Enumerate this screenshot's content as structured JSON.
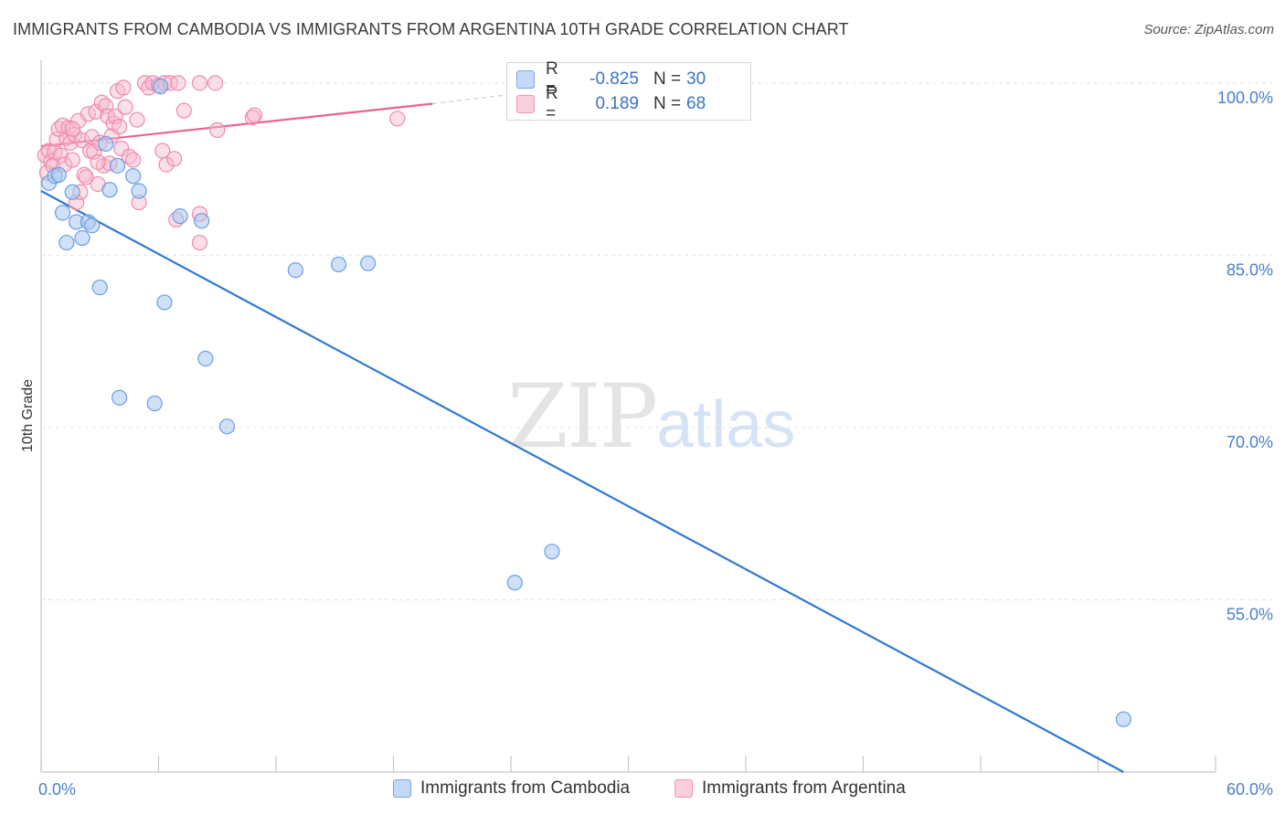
{
  "header": {
    "title": "IMMIGRANTS FROM CAMBODIA VS IMMIGRANTS FROM ARGENTINA 10TH GRADE CORRELATION CHART",
    "source": "Source: ZipAtlas.com"
  },
  "watermark": {
    "zip": "ZIP",
    "atlas": "atlas"
  },
  "legend": {
    "rows": [
      {
        "r_label": "R =",
        "r_value": "-0.825",
        "n_label": "N =",
        "n_value": "30",
        "color": "#a9c8f0"
      },
      {
        "r_label": "R =",
        "r_value": "0.189",
        "n_label": "N =",
        "n_value": "68",
        "color": "#f6b7cb"
      }
    ]
  },
  "bottom_legend": {
    "cambodia": "Immigrants from Cambodia",
    "argentina": "Immigrants from Argentina"
  },
  "colors": {
    "cambodia_fill": "#a9c8f0",
    "cambodia_stroke": "#6b9ee0",
    "cambodia_line": "#2f78d4",
    "argentina_fill": "#f6b7cb",
    "argentina_stroke": "#ee8aab",
    "argentina_line": "#e8638f",
    "tick_text": "#4a7fc8"
  },
  "chart_data": {
    "type": "scatter",
    "title": "IMMIGRANTS FROM CAMBODIA VS IMMIGRANTS FROM ARGENTINA 10TH GRADE CORRELATION CHART",
    "xlabel": "",
    "ylabel": "10th Grade",
    "xlim": [
      0,
      60
    ],
    "ylim": [
      40,
      101.5
    ],
    "x_tick_labels": [
      {
        "value": 0,
        "label": "0.0%"
      },
      {
        "value": 60,
        "label": "60.0%"
      }
    ],
    "y_tick_labels": [
      {
        "value": 100,
        "label": "100.0%"
      },
      {
        "value": 85,
        "label": "85.0%"
      },
      {
        "value": 70,
        "label": "70.0%"
      },
      {
        "value": 55,
        "label": "55.0%"
      }
    ],
    "y_grid": [
      100,
      85,
      70,
      55
    ],
    "series": [
      {
        "name": "Immigrants from Cambodia",
        "R": -0.825,
        "N": 30,
        "points": [
          [
            0.4,
            91.3
          ],
          [
            0.7,
            91.9
          ],
          [
            0.9,
            92.0
          ],
          [
            1.1,
            88.7
          ],
          [
            1.3,
            86.1
          ],
          [
            1.6,
            90.5
          ],
          [
            1.8,
            87.9
          ],
          [
            2.1,
            86.5
          ],
          [
            2.4,
            87.9
          ],
          [
            2.6,
            87.6
          ],
          [
            3.0,
            82.2
          ],
          [
            3.3,
            94.7
          ],
          [
            3.5,
            90.7
          ],
          [
            3.9,
            92.8
          ],
          [
            4.0,
            72.6
          ],
          [
            4.7,
            91.9
          ],
          [
            5.0,
            90.6
          ],
          [
            5.8,
            72.1
          ],
          [
            6.3,
            80.9
          ],
          [
            6.1,
            99.7
          ],
          [
            7.1,
            88.4
          ],
          [
            8.2,
            88.0
          ],
          [
            8.4,
            76.0
          ],
          [
            9.5,
            70.1
          ],
          [
            13.0,
            83.7
          ],
          [
            15.2,
            84.2
          ],
          [
            16.7,
            84.3
          ],
          [
            24.2,
            56.5
          ],
          [
            26.1,
            59.2
          ],
          [
            55.3,
            44.6
          ]
        ],
        "trend": {
          "x0": 0,
          "y0": 90.6,
          "x1": 55.3,
          "y1": 40.0
        }
      },
      {
        "name": "Immigrants from Argentina",
        "R": 0.189,
        "N": 68,
        "points": [
          [
            0.2,
            93.7
          ],
          [
            0.3,
            92.2
          ],
          [
            0.4,
            94.1
          ],
          [
            0.5,
            93.2
          ],
          [
            0.6,
            92.8
          ],
          [
            0.7,
            94.0
          ],
          [
            0.8,
            95.1
          ],
          [
            0.9,
            96.0
          ],
          [
            1.0,
            93.7
          ],
          [
            1.1,
            96.3
          ],
          [
            1.2,
            92.9
          ],
          [
            1.3,
            95.2
          ],
          [
            1.4,
            96.1
          ],
          [
            1.5,
            94.8
          ],
          [
            1.6,
            93.3
          ],
          [
            1.7,
            95.5
          ],
          [
            1.8,
            89.6
          ],
          [
            1.9,
            96.7
          ],
          [
            2.0,
            90.5
          ],
          [
            2.1,
            95.0
          ],
          [
            2.2,
            92.0
          ],
          [
            2.3,
            91.8
          ],
          [
            2.4,
            97.3
          ],
          [
            2.5,
            94.1
          ],
          [
            2.6,
            95.3
          ],
          [
            2.7,
            94.0
          ],
          [
            2.8,
            97.5
          ],
          [
            2.9,
            91.2
          ],
          [
            3.0,
            94.8
          ],
          [
            3.1,
            98.3
          ],
          [
            3.2,
            92.8
          ],
          [
            3.3,
            98.0
          ],
          [
            3.4,
            97.1
          ],
          [
            3.5,
            93.0
          ],
          [
            3.6,
            95.4
          ],
          [
            3.7,
            96.5
          ],
          [
            3.8,
            97.1
          ],
          [
            3.9,
            99.3
          ],
          [
            4.0,
            96.2
          ],
          [
            4.1,
            94.3
          ],
          [
            4.2,
            99.6
          ],
          [
            4.3,
            97.9
          ],
          [
            4.5,
            93.6
          ],
          [
            4.7,
            93.3
          ],
          [
            4.9,
            96.8
          ],
          [
            5.0,
            89.6
          ],
          [
            5.3,
            100.0
          ],
          [
            5.5,
            99.6
          ],
          [
            5.7,
            100.0
          ],
          [
            6.0,
            99.8
          ],
          [
            6.2,
            94.1
          ],
          [
            6.3,
            100.0
          ],
          [
            6.4,
            92.9
          ],
          [
            6.6,
            100.0
          ],
          [
            6.8,
            93.4
          ],
          [
            6.9,
            88.1
          ],
          [
            7.0,
            100.0
          ],
          [
            7.3,
            97.6
          ],
          [
            8.1,
            88.6
          ],
          [
            8.1,
            86.1
          ],
          [
            8.1,
            100.0
          ],
          [
            8.9,
            100.0
          ],
          [
            9.0,
            95.9
          ],
          [
            10.8,
            97.0
          ],
          [
            10.9,
            97.2
          ],
          [
            18.2,
            96.9
          ],
          [
            2.9,
            93.1
          ],
          [
            1.6,
            96.0
          ]
        ],
        "trend": {
          "x0": 0,
          "y0": 94.5,
          "x1": 20.0,
          "y1": 98.2
        },
        "trend_dashed_extension": {
          "x0": 20.0,
          "y0": 98.2,
          "x1": 26.0,
          "y1": 99.4
        }
      }
    ]
  }
}
